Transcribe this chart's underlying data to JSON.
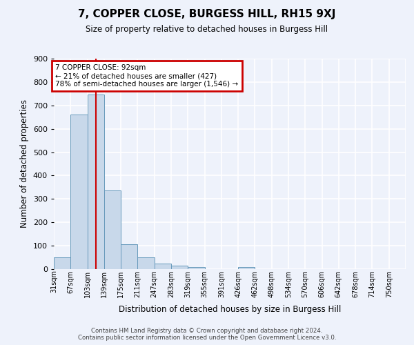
{
  "title": "7, COPPER CLOSE, BURGESS HILL, RH15 9XJ",
  "subtitle": "Size of property relative to detached houses in Burgess Hill",
  "xlabel": "Distribution of detached houses by size in Burgess Hill",
  "ylabel": "Number of detached properties",
  "footer_line1": "Contains HM Land Registry data © Crown copyright and database right 2024.",
  "footer_line2": "Contains public sector information licensed under the Open Government Licence v3.0.",
  "annotation_line1": "7 COPPER CLOSE: 92sqm",
  "annotation_line2": "← 21% of detached houses are smaller (427)",
  "annotation_line3": "78% of semi-detached houses are larger (1,546) →",
  "bar_color": "#c8d8ea",
  "bar_edge_color": "#6699bb",
  "highlight_color": "#cc0000",
  "background_color": "#eef2fb",
  "grid_color": "#ffffff",
  "bins": [
    "31sqm",
    "67sqm",
    "103sqm",
    "139sqm",
    "175sqm",
    "211sqm",
    "247sqm",
    "283sqm",
    "319sqm",
    "355sqm",
    "391sqm",
    "426sqm",
    "462sqm",
    "498sqm",
    "534sqm",
    "570sqm",
    "606sqm",
    "642sqm",
    "678sqm",
    "714sqm",
    "750sqm"
  ],
  "values": [
    50,
    660,
    748,
    335,
    105,
    50,
    25,
    15,
    10,
    0,
    0,
    8,
    0,
    0,
    0,
    0,
    0,
    0,
    0,
    0,
    0
  ],
  "property_bin_index": 2,
  "ylim_max": 900,
  "yticks": [
    0,
    100,
    200,
    300,
    400,
    500,
    600,
    700,
    800,
    900
  ]
}
